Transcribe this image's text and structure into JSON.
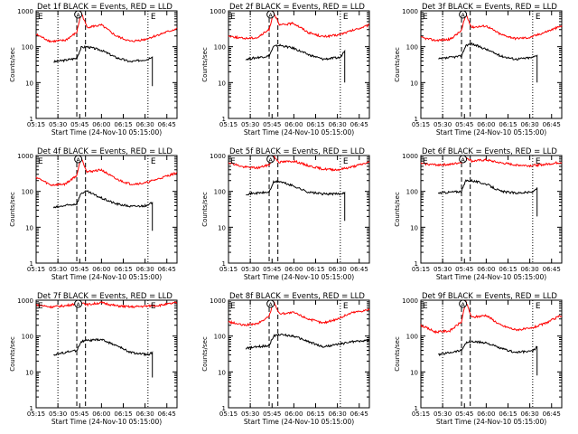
{
  "layout_grid": {
    "rows": 3,
    "cols": 3
  },
  "colors": {
    "events": "#000000",
    "lld": "#ff0000",
    "axes": "#000000",
    "background": "#ffffff"
  },
  "common": {
    "ylabel": "Counts/sec",
    "xlabel": "Start Time (24-Nov-10 05:15:00)",
    "xticks": [
      "05:15",
      "05:30",
      "05:45",
      "06:00",
      "06:15",
      "06:30",
      "06:45"
    ],
    "yticks": [
      "1",
      "10",
      "100",
      "1000"
    ],
    "marker_left": "E",
    "marker_right": "E",
    "marker_attenuator": "A"
  },
  "chart_data": [
    {
      "type": "line",
      "title": "Det 1f BLACK = Events, RED = LLD",
      "xlabel": "Start Time (24-Nov-10 05:15:00)",
      "ylabel": "Counts/sec",
      "ylim": [
        1,
        1000
      ],
      "y_scale": "log",
      "vlines_dotted": [
        "05:30",
        "06:32"
      ],
      "vlines_dashed": [
        "05:43",
        "05:49"
      ],
      "series": [
        {
          "name": "Events",
          "color": "#000000",
          "x": [
            "05:27",
            "05:35",
            "05:43",
            "05:46",
            "05:50",
            "06:00",
            "06:10",
            "06:20",
            "06:32",
            "06:35",
            "06:35"
          ],
          "y": [
            38,
            42,
            48,
            95,
            100,
            80,
            50,
            38,
            45,
            55,
            8
          ]
        },
        {
          "name": "LLD",
          "color": "#ff0000",
          "x": [
            "05:15",
            "05:25",
            "05:35",
            "05:43",
            "05:46",
            "05:50",
            "06:00",
            "06:10",
            "06:20",
            "06:30",
            "06:40",
            "06:52"
          ],
          "y": [
            220,
            140,
            150,
            250,
            900,
            350,
            400,
            200,
            140,
            160,
            220,
            320
          ]
        }
      ]
    },
    {
      "type": "line",
      "title": "Det 2f BLACK = Events, RED = LLD",
      "xlabel": "Start Time (24-Nov-10 05:15:00)",
      "ylabel": "Counts/sec",
      "ylim": [
        1,
        1000
      ],
      "y_scale": "log",
      "vlines_dotted": [
        "05:30",
        "06:32"
      ],
      "vlines_dashed": [
        "05:43",
        "05:49"
      ],
      "series": [
        {
          "name": "Events",
          "color": "#000000",
          "x": [
            "05:27",
            "05:35",
            "05:43",
            "05:46",
            "05:50",
            "06:00",
            "06:10",
            "06:20",
            "06:32",
            "06:35",
            "06:35"
          ],
          "y": [
            45,
            50,
            55,
            100,
            110,
            90,
            60,
            45,
            50,
            80,
            10
          ]
        },
        {
          "name": "LLD",
          "color": "#ff0000",
          "x": [
            "05:15",
            "05:25",
            "05:35",
            "05:43",
            "05:46",
            "05:50",
            "06:00",
            "06:10",
            "06:20",
            "06:30",
            "06:40",
            "06:52"
          ],
          "y": [
            200,
            170,
            180,
            300,
            900,
            400,
            450,
            250,
            190,
            210,
            280,
            400
          ]
        }
      ]
    },
    {
      "type": "line",
      "title": "Det 3f BLACK = Events, RED = LLD",
      "xlabel": "Start Time (24-Nov-10 05:15:00)",
      "ylabel": "Counts/sec",
      "ylim": [
        1,
        1000
      ],
      "y_scale": "log",
      "vlines_dotted": [
        "05:30",
        "06:32"
      ],
      "vlines_dashed": [
        "05:43",
        "05:49"
      ],
      "series": [
        {
          "name": "Events",
          "color": "#000000",
          "x": [
            "05:27",
            "05:35",
            "05:43",
            "05:46",
            "05:50",
            "06:00",
            "06:10",
            "06:20",
            "06:32",
            "06:35",
            "06:35"
          ],
          "y": [
            45,
            50,
            55,
            110,
            120,
            85,
            55,
            45,
            50,
            60,
            10
          ]
        },
        {
          "name": "LLD",
          "color": "#ff0000",
          "x": [
            "05:15",
            "05:25",
            "05:35",
            "05:43",
            "05:46",
            "05:50",
            "06:00",
            "06:10",
            "06:20",
            "06:30",
            "06:40",
            "06:52"
          ],
          "y": [
            180,
            150,
            160,
            280,
            800,
            350,
            380,
            220,
            170,
            180,
            250,
            380
          ]
        }
      ]
    },
    {
      "type": "line",
      "title": "Det 4f BLACK = Events, RED = LLD",
      "xlabel": "Start Time (24-Nov-10 05:15:00)",
      "ylabel": "Counts/sec",
      "ylim": [
        1,
        1000
      ],
      "y_scale": "log",
      "vlines_dotted": [
        "05:30",
        "06:32"
      ],
      "vlines_dashed": [
        "05:43",
        "05:49"
      ],
      "series": [
        {
          "name": "Events",
          "color": "#000000",
          "x": [
            "05:27",
            "05:35",
            "05:43",
            "05:46",
            "05:50",
            "06:00",
            "06:10",
            "06:20",
            "06:32",
            "06:35",
            "06:35"
          ],
          "y": [
            35,
            40,
            45,
            90,
            100,
            65,
            45,
            38,
            40,
            50,
            8
          ]
        },
        {
          "name": "LLD",
          "color": "#ff0000",
          "x": [
            "05:15",
            "05:25",
            "05:35",
            "05:43",
            "05:46",
            "05:50",
            "06:00",
            "06:10",
            "06:20",
            "06:30",
            "06:40",
            "06:52"
          ],
          "y": [
            250,
            150,
            160,
            280,
            900,
            350,
            400,
            220,
            160,
            170,
            230,
            330
          ]
        }
      ]
    },
    {
      "type": "line",
      "title": "Det 5f BLACK = Events, RED = LLD",
      "xlabel": "Start Time (24-Nov-10 05:15:00)",
      "ylabel": "Counts/sec",
      "ylim": [
        1,
        1000
      ],
      "y_scale": "log",
      "vlines_dotted": [
        "05:30",
        "06:32"
      ],
      "vlines_dashed": [
        "05:43",
        "05:49"
      ],
      "series": [
        {
          "name": "Events",
          "color": "#000000",
          "x": [
            "05:27",
            "05:35",
            "05:43",
            "05:46",
            "05:50",
            "06:00",
            "06:10",
            "06:20",
            "06:32",
            "06:35",
            "06:35"
          ],
          "y": [
            85,
            90,
            95,
            180,
            190,
            140,
            95,
            85,
            85,
            95,
            15
          ]
        },
        {
          "name": "LLD",
          "color": "#ff0000",
          "x": [
            "05:15",
            "05:25",
            "05:35",
            "05:43",
            "05:46",
            "05:50",
            "06:00",
            "06:10",
            "06:20",
            "06:30",
            "06:40",
            "06:52"
          ],
          "y": [
            650,
            480,
            450,
            550,
            950,
            650,
            700,
            520,
            420,
            400,
            480,
            650
          ]
        }
      ]
    },
    {
      "type": "line",
      "title": "Det 6f BLACK = Events, RED = LLD",
      "xlabel": "Start Time (24-Nov-10 05:15:00)",
      "ylabel": "Counts/sec",
      "ylim": [
        1,
        1000
      ],
      "y_scale": "log",
      "vlines_dotted": [
        "05:30",
        "06:32"
      ],
      "vlines_dashed": [
        "05:43",
        "05:49"
      ],
      "series": [
        {
          "name": "Events",
          "color": "#000000",
          "x": [
            "05:27",
            "05:35",
            "05:43",
            "05:46",
            "05:50",
            "06:00",
            "06:10",
            "06:20",
            "06:32",
            "06:35",
            "06:35"
          ],
          "y": [
            90,
            95,
            100,
            200,
            200,
            160,
            100,
            90,
            95,
            130,
            20
          ]
        },
        {
          "name": "LLD",
          "color": "#ff0000",
          "x": [
            "05:15",
            "05:25",
            "05:35",
            "05:43",
            "05:46",
            "05:50",
            "06:00",
            "06:10",
            "06:20",
            "06:30",
            "06:40",
            "06:52"
          ],
          "y": [
            600,
            550,
            560,
            650,
            900,
            700,
            750,
            620,
            550,
            520,
            560,
            650
          ]
        }
      ]
    },
    {
      "type": "line",
      "title": "Det 7f BLACK = Events, RED = LLD",
      "xlabel": "Start Time (24-Nov-10 05:15:00)",
      "ylabel": "Counts/sec",
      "ylim": [
        1,
        1000
      ],
      "y_scale": "log",
      "vlines_dotted": [
        "05:30",
        "06:32"
      ],
      "vlines_dashed": [
        "05:43",
        "05:49"
      ],
      "series": [
        {
          "name": "Events",
          "color": "#000000",
          "x": [
            "05:27",
            "05:35",
            "05:43",
            "05:46",
            "05:50",
            "06:00",
            "06:10",
            "06:20",
            "06:32",
            "06:35",
            "06:35"
          ],
          "y": [
            30,
            35,
            40,
            70,
            75,
            80,
            55,
            35,
            30,
            35,
            7
          ]
        },
        {
          "name": "LLD",
          "color": "#ff0000",
          "x": [
            "05:15",
            "05:25",
            "05:35",
            "05:43",
            "05:46",
            "05:50",
            "06:00",
            "06:10",
            "06:20",
            "06:30",
            "06:40",
            "06:52"
          ],
          "y": [
            750,
            650,
            700,
            800,
            900,
            750,
            850,
            700,
            650,
            680,
            720,
            850
          ]
        }
      ]
    },
    {
      "type": "line",
      "title": "Det 8f BLACK = Events, RED = LLD",
      "xlabel": "Start Time (24-Nov-10 05:15:00)",
      "ylabel": "Counts/sec",
      "ylim": [
        1,
        1000
      ],
      "y_scale": "log",
      "vlines_dotted": [
        "05:30",
        "06:32"
      ],
      "vlines_dashed": [
        "05:43",
        "05:49"
      ],
      "series": [
        {
          "name": "Events",
          "color": "#000000",
          "x": [
            "05:27",
            "05:35",
            "05:43",
            "05:46",
            "05:50",
            "06:00",
            "06:10",
            "06:20",
            "06:32",
            "06:40",
            "06:52"
          ],
          "y": [
            45,
            50,
            55,
            100,
            110,
            100,
            70,
            50,
            60,
            70,
            75
          ]
        },
        {
          "name": "LLD",
          "color": "#ff0000",
          "x": [
            "05:15",
            "05:25",
            "05:35",
            "05:43",
            "05:46",
            "05:50",
            "06:00",
            "06:10",
            "06:20",
            "06:30",
            "06:40",
            "06:52"
          ],
          "y": [
            250,
            200,
            220,
            350,
            950,
            420,
            450,
            300,
            230,
            300,
            450,
            550
          ]
        }
      ]
    },
    {
      "type": "line",
      "title": "Det 9f BLACK = Events, RED = LLD",
      "xlabel": "Start Time (24-Nov-10 05:15:00)",
      "ylabel": "Counts/sec",
      "ylim": [
        1,
        1000
      ],
      "y_scale": "log",
      "vlines_dotted": [
        "05:30",
        "06:32"
      ],
      "vlines_dashed": [
        "05:43",
        "05:49"
      ],
      "series": [
        {
          "name": "Events",
          "color": "#000000",
          "x": [
            "05:27",
            "05:35",
            "05:43",
            "05:46",
            "05:50",
            "06:00",
            "06:10",
            "06:20",
            "06:32",
            "06:35",
            "06:35"
          ],
          "y": [
            30,
            35,
            40,
            65,
            70,
            65,
            45,
            35,
            38,
            50,
            8
          ]
        },
        {
          "name": "LLD",
          "color": "#ff0000",
          "x": [
            "05:15",
            "05:25",
            "05:35",
            "05:43",
            "05:46",
            "05:50",
            "06:00",
            "06:10",
            "06:20",
            "06:30",
            "06:40",
            "06:52"
          ],
          "y": [
            200,
            130,
            140,
            250,
            900,
            330,
            380,
            200,
            150,
            160,
            220,
            380
          ]
        }
      ]
    }
  ]
}
